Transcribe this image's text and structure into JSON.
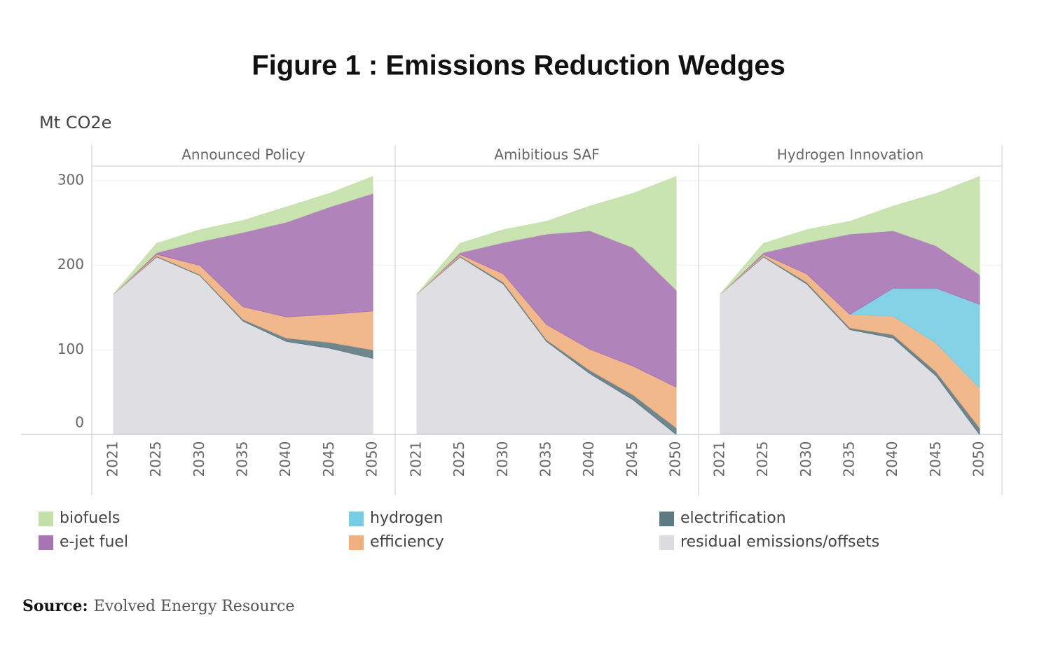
{
  "chart_data": {
    "type": "area",
    "stacked": true,
    "title": "Figure 1 : Emissions Reduction Wedges",
    "y_label": "Mt CO2e",
    "categories": [
      "2021",
      "2025",
      "2030",
      "2035",
      "2040",
      "2045",
      "2050"
    ],
    "ylim": [
      0,
      300
    ],
    "yticks": [
      0,
      100,
      200,
      300
    ],
    "grid": true,
    "panels": [
      {
        "title": "Announced Policy",
        "series": [
          {
            "name": "residual emissions/offsets",
            "color": "#dcdce0",
            "values": [
              166,
              210,
              188,
              134,
              110,
              102,
              90
            ]
          },
          {
            "name": "electrification",
            "color": "#5e7a82",
            "values": [
              0,
              1,
              1,
              2,
              4,
              7,
              10
            ]
          },
          {
            "name": "efficiency",
            "color": "#f0b07e",
            "values": [
              0,
              2,
              11,
              15,
              25,
              33,
              46
            ]
          },
          {
            "name": "e-jet fuel",
            "color": "#a875b4",
            "values": [
              0,
              2,
              28,
              88,
              112,
              127,
              139
            ]
          },
          {
            "name": "biofuels",
            "color": "#c3e0a9",
            "values": [
              0,
              11,
              14,
              14,
              18,
              16,
              20
            ]
          }
        ]
      },
      {
        "title": "Amibitious SAF",
        "series": [
          {
            "name": "residual emissions/offsets",
            "color": "#dcdce0",
            "values": [
              166,
              210,
              178,
              110,
              72,
              41,
              0
            ]
          },
          {
            "name": "electrification",
            "color": "#5e7a82",
            "values": [
              0,
              1,
              2,
              2,
              4,
              6,
              8
            ]
          },
          {
            "name": "efficiency",
            "color": "#f0b07e",
            "values": [
              0,
              2,
              10,
              18,
              25,
              34,
              48
            ]
          },
          {
            "name": "e-jet fuel",
            "color": "#a875b4",
            "values": [
              0,
              2,
              37,
              107,
              140,
              140,
              115
            ]
          },
          {
            "name": "biofuels",
            "color": "#c3e0a9",
            "values": [
              0,
              11,
              15,
              15,
              29,
              64,
              134
            ]
          }
        ]
      },
      {
        "title": "Hydrogen Innovation",
        "series": [
          {
            "name": "residual emissions/offsets",
            "color": "#dcdce0",
            "values": [
              166,
              210,
              178,
              124,
              114,
              69,
              0
            ]
          },
          {
            "name": "electrification",
            "color": "#5e7a82",
            "values": [
              0,
              1,
              2,
              2,
              4,
              5,
              8
            ]
          },
          {
            "name": "efficiency",
            "color": "#f0b07e",
            "values": [
              0,
              2,
              10,
              16,
              22,
              34,
              47
            ]
          },
          {
            "name": "hydrogen",
            "color": "#77cde3",
            "values": [
              0,
              0,
              0,
              0,
              33,
              65,
              99
            ]
          },
          {
            "name": "e-jet fuel",
            "color": "#a875b4",
            "values": [
              0,
              2,
              37,
              95,
              68,
              50,
              35
            ]
          },
          {
            "name": "biofuels",
            "color": "#c3e0a9",
            "values": [
              0,
              11,
              15,
              15,
              29,
              62,
              116
            ]
          }
        ]
      }
    ]
  },
  "source": {
    "label": "Source:",
    "text": "Evolved Energy Resource"
  }
}
